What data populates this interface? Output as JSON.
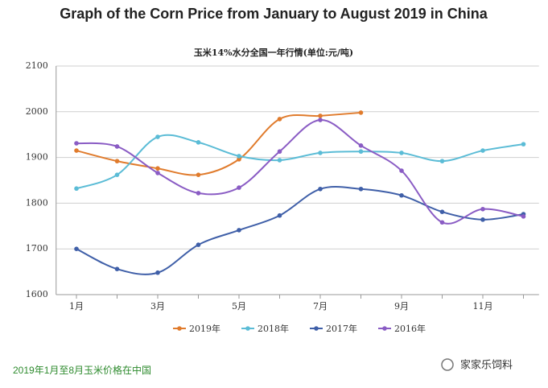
{
  "chart_data": {
    "type": "line",
    "title": "Graph of the Corn Price from January to August 2019 in China",
    "subtitle": "玉米14%水分全国一年行情(单位:元/吨)",
    "caption": "2019年1月至8月玉米价格在中国",
    "source": "家家乐饲料",
    "categories": [
      "1月",
      null,
      "3月",
      null,
      "5月",
      null,
      "7月",
      null,
      "9月",
      null,
      "11月",
      null
    ],
    "ylim": [
      1600,
      2100
    ],
    "yticks": [
      1600,
      1700,
      1800,
      1900,
      2000,
      2100
    ],
    "grid": true,
    "legend": "bottom",
    "series": [
      {
        "name": "2019年",
        "color": "#e07b2c",
        "values": [
          1915,
          1892,
          1876,
          1862,
          1896,
          1984,
          1991,
          1998,
          null,
          null,
          null,
          null
        ]
      },
      {
        "name": "2018年",
        "color": "#5bbcd6",
        "values": [
          1832,
          1862,
          1945,
          1933,
          1903,
          1894,
          1910,
          1913,
          1910,
          1892,
          1915,
          1929
        ]
      },
      {
        "name": "2017年",
        "color": "#3f5fa8",
        "values": [
          1700,
          1656,
          1648,
          1709,
          1741,
          1773,
          1831,
          1831,
          1817,
          1781,
          1764,
          1776
        ]
      },
      {
        "name": "2016年",
        "color": "#8a5cc4",
        "values": [
          1931,
          1924,
          1866,
          1822,
          1834,
          1913,
          1982,
          1926,
          1871,
          1758,
          1787,
          1771
        ]
      }
    ]
  }
}
